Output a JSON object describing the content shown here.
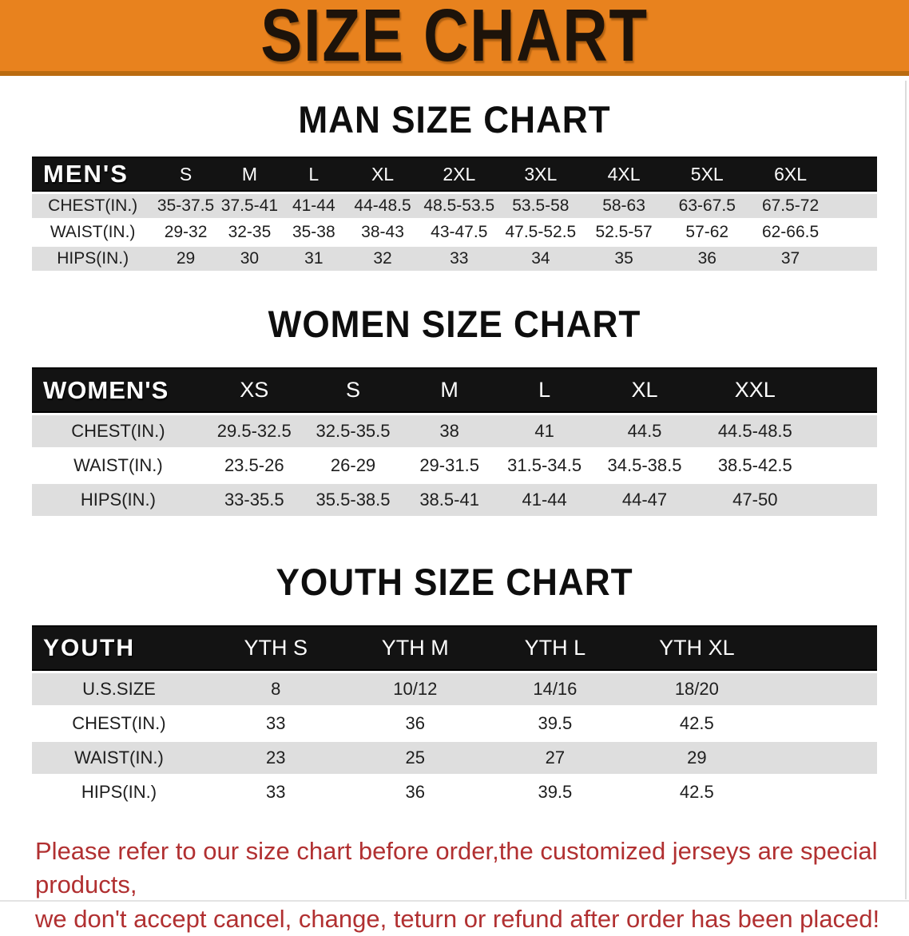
{
  "banner": {
    "title": "SIZE CHART"
  },
  "colors": {
    "banner_bg": "#E8821E",
    "banner_edge": "#BA6B10",
    "header_bar": "#131313",
    "row_gray": "#DEDEDE",
    "disclaimer_red": "#B13031"
  },
  "sections": {
    "men": {
      "title": "MAN SIZE CHART",
      "corner": "MEN'S",
      "columns": [
        "S",
        "M",
        "L",
        "XL",
        "2XL",
        "3XL",
        "4XL",
        "5XL",
        "6XL"
      ],
      "rows": [
        {
          "label": "CHEST(IN.)",
          "values": [
            "35-37.5",
            "37.5-41",
            "41-44",
            "44-48.5",
            "48.5-53.5",
            "53.5-58",
            "58-63",
            "63-67.5",
            "67.5-72"
          ]
        },
        {
          "label": "WAIST(IN.)",
          "values": [
            "29-32",
            "32-35",
            "35-38",
            "38-43",
            "43-47.5",
            "47.5-52.5",
            "52.5-57",
            "57-62",
            "62-66.5"
          ]
        },
        {
          "label": "HIPS(IN.)",
          "values": [
            "29",
            "30",
            "31",
            "32",
            "33",
            "34",
            "35",
            "36",
            "37"
          ]
        }
      ]
    },
    "women": {
      "title": "WOMEN SIZE CHART",
      "corner": "WOMEN'S",
      "columns": [
        "XS",
        "S",
        "M",
        "L",
        "XL",
        "XXL"
      ],
      "rows": [
        {
          "label": "CHEST(IN.)",
          "values": [
            "29.5-32.5",
            "32.5-35.5",
            "38",
            "41",
            "44.5",
            "44.5-48.5"
          ]
        },
        {
          "label": "WAIST(IN.)",
          "values": [
            "23.5-26",
            "26-29",
            "29-31.5",
            "31.5-34.5",
            "34.5-38.5",
            "38.5-42.5"
          ]
        },
        {
          "label": "HIPS(IN.)",
          "values": [
            "33-35.5",
            "35.5-38.5",
            "38.5-41",
            "41-44",
            "44-47",
            "47-50"
          ]
        }
      ]
    },
    "youth": {
      "title": "YOUTH SIZE CHART",
      "corner": "YOUTH",
      "columns": [
        "YTH S",
        "YTH M",
        "YTH L",
        "YTH XL"
      ],
      "rows": [
        {
          "label": "U.S.SIZE",
          "values": [
            "8",
            "10/12",
            "14/16",
            "18/20"
          ]
        },
        {
          "label": "CHEST(IN.)",
          "values": [
            "33",
            "36",
            "39.5",
            "42.5"
          ]
        },
        {
          "label": "WAIST(IN.)",
          "values": [
            "23",
            "25",
            "27",
            "29"
          ]
        },
        {
          "label": "HIPS(IN.)",
          "values": [
            "33",
            "36",
            "39.5",
            "42.5"
          ]
        }
      ]
    }
  },
  "disclaimer": {
    "line1": "Please refer to our size chart before order,the customized jerseys are special products,",
    "line2": "we don't accept cancel, change, teturn or refund after order has been placed!"
  }
}
